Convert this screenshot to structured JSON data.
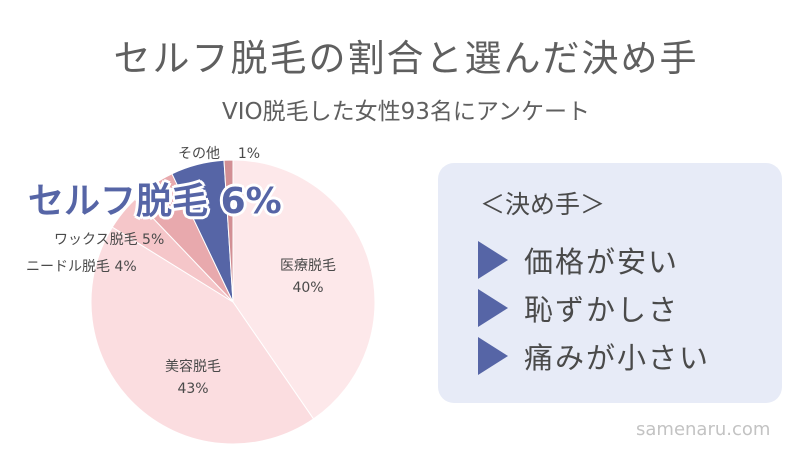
{
  "header": {
    "title": "セルフ脱毛の割合と選んだ決め手",
    "subtitle": "VIO脱毛した女性93名にアンケート"
  },
  "chart_data": {
    "type": "pie",
    "slices": [
      {
        "label": "医療脱毛",
        "value": 40,
        "pct_text": "40%",
        "color": "#fde8ea"
      },
      {
        "label": "美容脱毛",
        "value": 43,
        "pct_text": "43%",
        "color": "#fbdde0"
      },
      {
        "label": "ニードル脱毛",
        "value": 4,
        "pct_text": "4%",
        "color": "#f5c6c9"
      },
      {
        "label": "ワックス脱毛",
        "value": 5,
        "pct_text": "5%",
        "color": "#e8a9ad"
      },
      {
        "label": "セルフ脱毛",
        "value": 6,
        "pct_text": "6%",
        "color": "#5665a6"
      },
      {
        "label": "その他",
        "value": 1,
        "pct_text": "1%",
        "color": "#d28f94"
      }
    ],
    "highlight": "セルフ脱毛"
  },
  "panel": {
    "title": "＜決め手＞",
    "reasons": [
      "価格が安い",
      "恥ずかしさ",
      "痛みが小さい"
    ]
  },
  "watermark": "samenaru.com"
}
